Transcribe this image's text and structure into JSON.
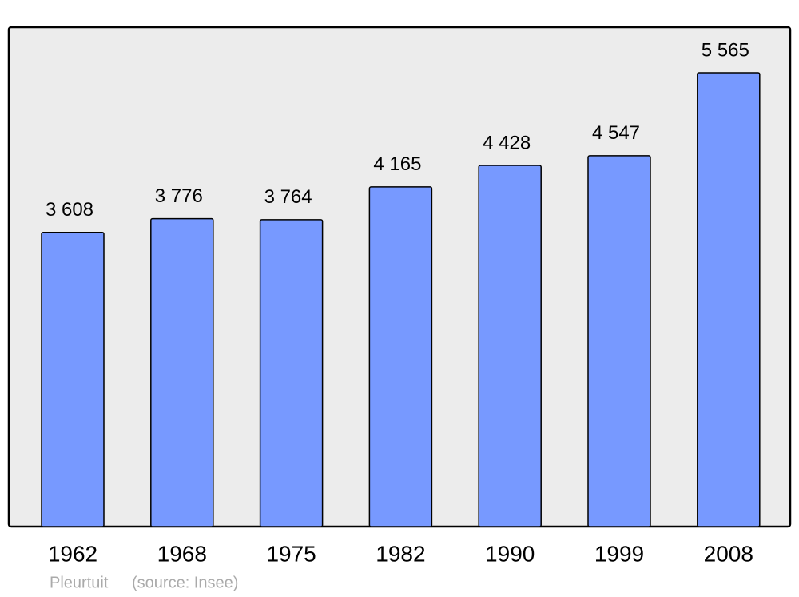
{
  "chart_data": {
    "type": "bar",
    "categories": [
      "1962",
      "1968",
      "1975",
      "1982",
      "1990",
      "1999",
      "2008"
    ],
    "values": [
      3608,
      3776,
      3764,
      4165,
      4428,
      4547,
      5565
    ],
    "value_labels": [
      "3 608",
      "3 776",
      "3 764",
      "4 165",
      "4 428",
      "4 547",
      "5 565"
    ],
    "color": "#7799ff",
    "place": "Pleurtuit",
    "source": "(source: Insee)"
  }
}
